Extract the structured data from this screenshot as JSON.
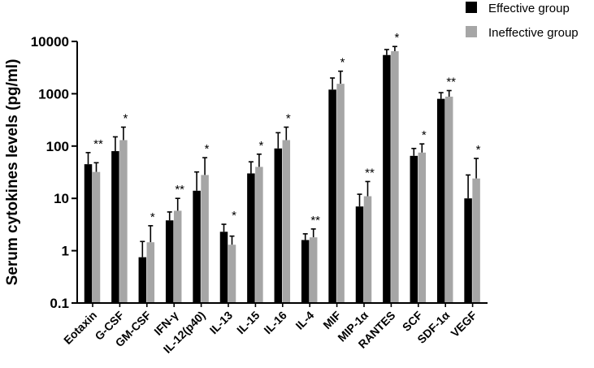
{
  "chart_data": {
    "type": "bar",
    "title": "",
    "xlabel": "",
    "ylabel": "Serum cytokines levels (pg/ml)",
    "yscale": "log",
    "ylim": [
      0.1,
      10000
    ],
    "yticks": [
      "0.1",
      "1",
      "10",
      "100",
      "1000",
      "10000"
    ],
    "grid": false,
    "legend_position": "top-right",
    "categories": [
      "Eotaxin",
      "G-CSF",
      "GM-CSF",
      "IFN-γ",
      "IL-12(p40)",
      "IL-13",
      "IL-15",
      "IL-16",
      "IL-4",
      "MIF",
      "MIP-1α",
      "RANTES",
      "SCF",
      "SDF-1α",
      "VEGF"
    ],
    "series": [
      {
        "name": "Effective group",
        "color": "#000000",
        "values": [
          45,
          80,
          0.75,
          3.8,
          14,
          2.3,
          30,
          90,
          1.6,
          1200,
          7,
          5500,
          65,
          800,
          10
        ],
        "error_upper": [
          75,
          150,
          1.5,
          5.5,
          32,
          3.2,
          50,
          180,
          2.1,
          2000,
          12,
          7000,
          90,
          1050,
          28
        ]
      },
      {
        "name": "Ineffective group",
        "color": "#a6a6a6",
        "values": [
          32,
          130,
          1.45,
          5.8,
          28,
          1.3,
          40,
          130,
          1.8,
          1550,
          11,
          6500,
          75,
          880,
          24
        ],
        "error_upper": [
          48,
          230,
          3.0,
          10,
          60,
          1.9,
          70,
          230,
          2.6,
          2700,
          21,
          8000,
          110,
          1150,
          58
        ]
      }
    ],
    "annotations": [
      "**",
      "*",
      "*",
      "**",
      "*",
      "*",
      "*",
      "*",
      "**",
      "*",
      "**",
      "*",
      "*",
      "**",
      "*"
    ]
  },
  "colors": {
    "axis": "#000000",
    "effective": "#000000",
    "ineffective": "#a6a6a6"
  }
}
